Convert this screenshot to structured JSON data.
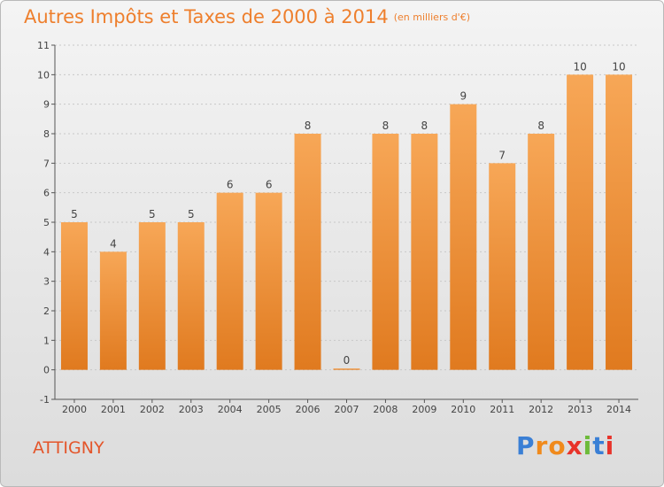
{
  "title": "Autres Impôts et Taxes de 2000 à 2014",
  "subtitle": "(en milliers d'€)",
  "commune": "ATTIGNY",
  "logo": {
    "letters": [
      "P",
      "r",
      "o",
      "x",
      "i",
      "t",
      "i"
    ],
    "colors": [
      "#3a7fd5",
      "#f08a1c",
      "#f08a1c",
      "#e8332a",
      "#6dbb3a",
      "#3a7fd5",
      "#e8332a"
    ]
  },
  "colors": {
    "bar_light": "#f7a757",
    "bar_dark": "#e07a1f",
    "label": "#444444"
  },
  "chart_data": {
    "type": "bar",
    "title": "Autres Impôts et Taxes de 2000 à 2014",
    "subtitle": "(en milliers d'€)",
    "xlabel": "",
    "ylabel": "",
    "categories": [
      "2000",
      "2001",
      "2002",
      "2003",
      "2004",
      "2005",
      "2006",
      "2007",
      "2008",
      "2009",
      "2010",
      "2011",
      "2012",
      "2013",
      "2014"
    ],
    "values": [
      5,
      4,
      5,
      5,
      6,
      6,
      8,
      0,
      8,
      8,
      9,
      7,
      8,
      10,
      10
    ],
    "data_labels": [
      "5",
      "4",
      "5",
      "5",
      "6",
      "6",
      "8",
      "0",
      "8",
      "8",
      "9",
      "7",
      "8",
      "10",
      "10"
    ],
    "ylim": [
      -1,
      11
    ],
    "yticks": [
      "-1",
      "0",
      "1",
      "2",
      "3",
      "4",
      "5",
      "6",
      "7",
      "8",
      "9",
      "10",
      "11"
    ],
    "grid": "horizontal dotted",
    "legend": "none"
  }
}
